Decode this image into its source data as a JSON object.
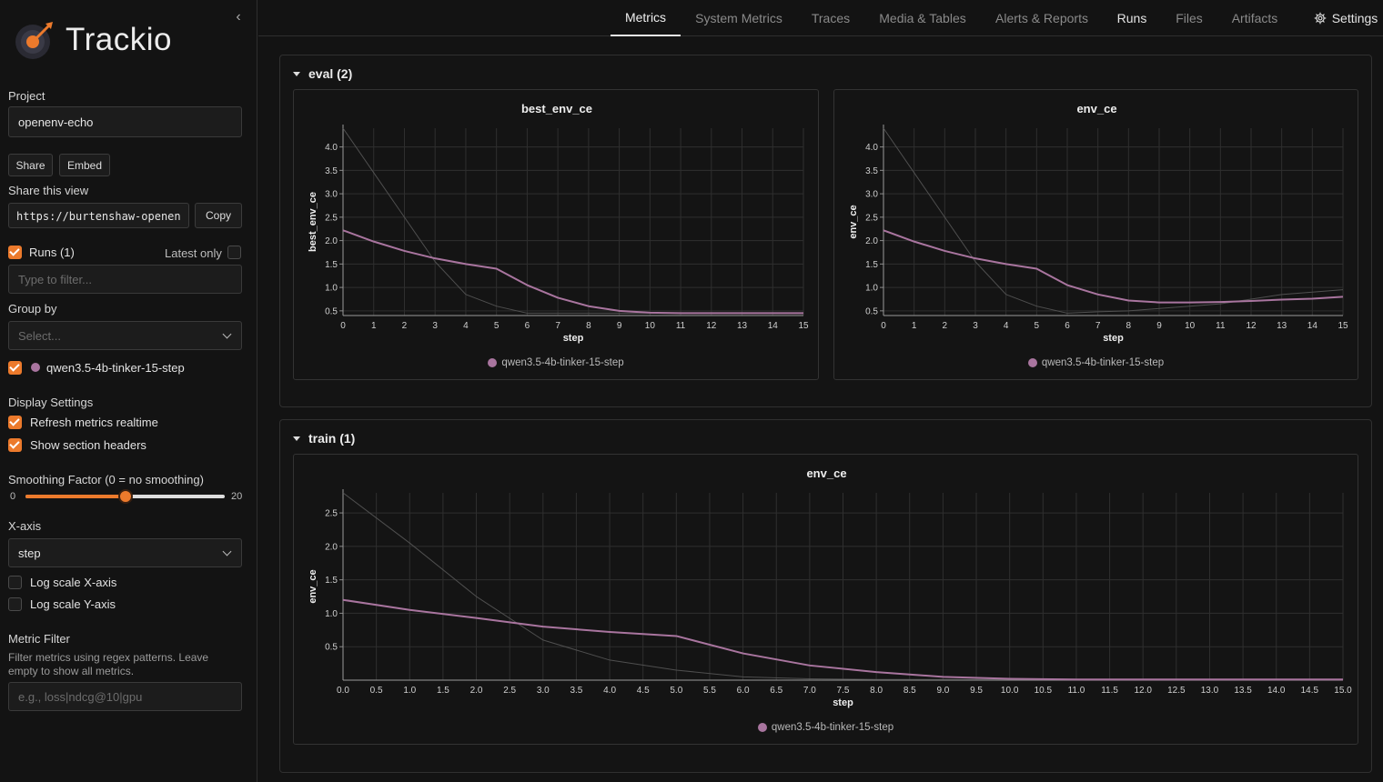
{
  "brand": {
    "name": "Trackio",
    "accent": "#ec7a2c"
  },
  "nav": {
    "tabs": [
      {
        "label": "Metrics",
        "active": true
      },
      {
        "label": "System Metrics"
      },
      {
        "label": "Traces"
      },
      {
        "label": "Media & Tables"
      },
      {
        "label": "Alerts & Reports"
      },
      {
        "label": "Runs"
      },
      {
        "label": "Files"
      },
      {
        "label": "Artifacts"
      },
      {
        "label": "Settings",
        "icon": "gear-icon"
      }
    ]
  },
  "sidebar": {
    "project_label": "Project",
    "project_value": "openenv-echo",
    "share_button": "Share",
    "embed_button": "Embed",
    "share_view_label": "Share this view",
    "share_url": "https://burtenshaw-openen",
    "copy_button": "Copy",
    "runs_label": "Runs (1)",
    "runs_checked": true,
    "latest_only_label": "Latest only",
    "latest_only_checked": false,
    "filter_placeholder": "Type to filter...",
    "group_by_label": "Group by",
    "group_by_placeholder": "Select...",
    "run_name": "qwen3.5-4b-tinker-15-step",
    "run_color": "#a9759f",
    "display_settings_label": "Display Settings",
    "refresh_label": "Refresh metrics realtime",
    "refresh_checked": true,
    "section_headers_label": "Show section headers",
    "section_headers_checked": true,
    "smoothing_label": "Smoothing Factor (0 = no smoothing)",
    "smoothing_min": "0",
    "smoothing_max": "20",
    "smoothing_value": 10,
    "xaxis_label": "X-axis",
    "xaxis_value": "step",
    "log_x_label": "Log scale X-axis",
    "log_x_checked": false,
    "log_y_label": "Log scale Y-axis",
    "log_y_checked": false,
    "metric_filter_label": "Metric Filter",
    "metric_filter_desc": "Filter metrics using regex patterns. Leave empty to show all metrics.",
    "metric_filter_placeholder": "e.g., loss|ndcg@10|gpu"
  },
  "sections": [
    {
      "title": "eval (2)"
    },
    {
      "title": "train (1)"
    }
  ],
  "chart_data": [
    {
      "type": "line",
      "title": "best_env_ce",
      "xlabel": "step",
      "ylabel": "best_env_ce",
      "xlim": [
        0,
        15
      ],
      "ylim": [
        0.4,
        4.4
      ],
      "xticks": [
        0,
        1,
        2,
        3,
        4,
        5,
        6,
        7,
        8,
        9,
        10,
        11,
        12,
        13,
        14,
        15
      ],
      "yticks": [
        0.5,
        1.0,
        1.5,
        2.0,
        2.5,
        3.0,
        3.5,
        4.0
      ],
      "grid": true,
      "legend": "bottom-center",
      "series": [
        {
          "name": "qwen3.5-4b-tinker-15-step",
          "color": "#a9759f",
          "x": [
            0,
            1,
            2,
            3,
            4,
            5,
            6,
            7,
            8,
            9,
            10,
            11,
            12,
            13,
            14,
            15
          ],
          "y": [
            2.22,
            1.98,
            1.78,
            1.62,
            1.5,
            1.4,
            1.05,
            0.78,
            0.6,
            0.5,
            0.46,
            0.45,
            0.45,
            0.45,
            0.45,
            0.45
          ]
        },
        {
          "color": "#555555",
          "raw": true,
          "x": [
            0,
            1,
            2,
            3,
            4,
            5,
            6,
            7,
            8,
            9,
            10,
            11,
            12,
            13,
            14,
            15
          ],
          "y": [
            4.4,
            3.45,
            2.5,
            1.55,
            0.85,
            0.6,
            0.45,
            0.45,
            0.45,
            0.45,
            0.45,
            0.45,
            0.45,
            0.45,
            0.45,
            0.45
          ]
        }
      ]
    },
    {
      "type": "line",
      "title": "env_ce",
      "xlabel": "step",
      "ylabel": "env_ce",
      "xlim": [
        0,
        15
      ],
      "ylim": [
        0.4,
        4.4
      ],
      "xticks": [
        0,
        1,
        2,
        3,
        4,
        5,
        6,
        7,
        8,
        9,
        10,
        11,
        12,
        13,
        14,
        15
      ],
      "yticks": [
        0.5,
        1.0,
        1.5,
        2.0,
        2.5,
        3.0,
        3.5,
        4.0
      ],
      "grid": true,
      "legend": "bottom-center",
      "series": [
        {
          "name": "qwen3.5-4b-tinker-15-step",
          "color": "#a9759f",
          "x": [
            0,
            1,
            2,
            3,
            4,
            5,
            6,
            7,
            8,
            9,
            10,
            11,
            12,
            13,
            14,
            15
          ],
          "y": [
            2.22,
            1.98,
            1.78,
            1.62,
            1.5,
            1.4,
            1.05,
            0.85,
            0.72,
            0.68,
            0.68,
            0.69,
            0.71,
            0.74,
            0.76,
            0.8
          ]
        },
        {
          "color": "#555555",
          "raw": true,
          "x": [
            0,
            1,
            2,
            3,
            4,
            5,
            6,
            7,
            8,
            9,
            10,
            11,
            12,
            13,
            14,
            15
          ],
          "y": [
            4.4,
            3.45,
            2.5,
            1.55,
            0.85,
            0.6,
            0.45,
            0.48,
            0.5,
            0.55,
            0.6,
            0.65,
            0.75,
            0.85,
            0.9,
            0.95
          ]
        }
      ]
    },
    {
      "type": "line",
      "title": "env_ce",
      "xlabel": "step",
      "ylabel": "env_ce",
      "xlim": [
        0,
        15
      ],
      "ylim": [
        0,
        2.8
      ],
      "xticks": [
        0.0,
        0.5,
        1.0,
        1.5,
        2.0,
        2.5,
        3.0,
        3.5,
        4.0,
        4.5,
        5.0,
        5.5,
        6.0,
        6.5,
        7.0,
        7.5,
        8.0,
        8.5,
        9.0,
        9.5,
        10.0,
        10.5,
        11.0,
        11.5,
        12.0,
        12.5,
        13.0,
        13.5,
        14.0,
        14.5,
        15.0
      ],
      "yticks": [
        0.5,
        1.0,
        1.5,
        2.0,
        2.5
      ],
      "tick_decimals": 1,
      "grid": true,
      "legend": "bottom-center",
      "series": [
        {
          "name": "qwen3.5-4b-tinker-15-step",
          "color": "#a9759f",
          "x": [
            0,
            1,
            2,
            3,
            4,
            5,
            6,
            7,
            8,
            9,
            10,
            11,
            12,
            13,
            14,
            15
          ],
          "y": [
            1.2,
            1.05,
            0.93,
            0.8,
            0.72,
            0.66,
            0.4,
            0.22,
            0.12,
            0.05,
            0.02,
            0.01,
            0.01,
            0.01,
            0.01,
            0.01
          ]
        },
        {
          "color": "#555555",
          "raw": true,
          "x": [
            0,
            1,
            2,
            3,
            4,
            5,
            6,
            7,
            8,
            9,
            10,
            11,
            12,
            13,
            14,
            15
          ],
          "y": [
            2.8,
            2.05,
            1.25,
            0.6,
            0.3,
            0.15,
            0.05,
            0.02,
            0.01,
            0.01,
            0.01,
            0.01,
            0.01,
            0.01,
            0.01,
            0.01
          ]
        }
      ]
    }
  ]
}
